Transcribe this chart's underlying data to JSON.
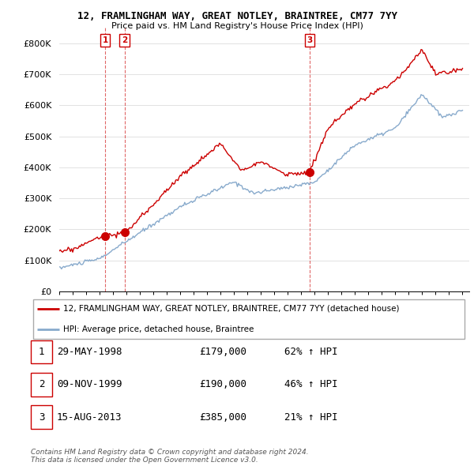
{
  "title1": "12, FRAMLINGHAM WAY, GREAT NOTLEY, BRAINTREE, CM77 7YY",
  "title2": "Price paid vs. HM Land Registry's House Price Index (HPI)",
  "ylim": [
    0,
    850000
  ],
  "yticks": [
    0,
    100000,
    200000,
    300000,
    400000,
    500000,
    600000,
    700000,
    800000
  ],
  "ytick_labels": [
    "£0",
    "£100K",
    "£200K",
    "£300K",
    "£400K",
    "£500K",
    "£600K",
    "£700K",
    "£800K"
  ],
  "sale_years": [
    1998.41,
    1999.86,
    2013.62
  ],
  "sale_prices": [
    179000,
    190000,
    385000
  ],
  "sale_labels": [
    "1",
    "2",
    "3"
  ],
  "sale_color": "#cc0000",
  "hpi_color": "#88aacc",
  "vline_color": "#cc0000",
  "legend_label_red": "12, FRAMLINGHAM WAY, GREAT NOTLEY, BRAINTREE, CM77 7YY (detached house)",
  "legend_label_blue": "HPI: Average price, detached house, Braintree",
  "table_rows": [
    {
      "num": "1",
      "date": "29-MAY-1998",
      "price": "£179,000",
      "hpi": "62% ↑ HPI"
    },
    {
      "num": "2",
      "date": "09-NOV-1999",
      "price": "£190,000",
      "hpi": "46% ↑ HPI"
    },
    {
      "num": "3",
      "date": "15-AUG-2013",
      "price": "£385,000",
      "hpi": "21% ↑ HPI"
    }
  ],
  "footer": "Contains HM Land Registry data © Crown copyright and database right 2024.\nThis data is licensed under the Open Government Licence v3.0.",
  "bg_color": "#ffffff",
  "grid_color": "#dddddd"
}
